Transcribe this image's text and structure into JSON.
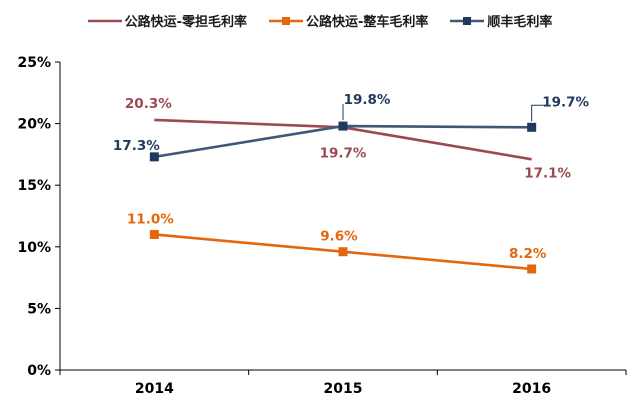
{
  "chart_data": {
    "type": "line",
    "title": "",
    "xlabel": "",
    "ylabel": "",
    "categories": [
      "2014",
      "2015",
      "2016"
    ],
    "series": [
      {
        "name": "公路快运-零担毛利率",
        "values": [
          20.3,
          19.7,
          17.1
        ],
        "labels": [
          "20.3%",
          "19.7%",
          "17.1%"
        ],
        "color": "#9B4A51",
        "label_color": "#9B4A51",
        "marker": "none",
        "label_offsets": [
          [
            -6,
            -16
          ],
          [
            0,
            26
          ],
          [
            16,
            14
          ]
        ],
        "leader_lines": [
          null,
          null,
          null
        ]
      },
      {
        "name": "公路快运-整车毛利率",
        "values": [
          11.0,
          9.6,
          8.2
        ],
        "labels": [
          "11.0%",
          "9.6%",
          "8.2%"
        ],
        "color": "#E4670E",
        "label_color": "#E4670E",
        "marker": "square",
        "marker_color": "#E4670E",
        "label_offsets": [
          [
            -4,
            -15
          ],
          [
            -4,
            -15
          ],
          [
            -4,
            -15
          ]
        ],
        "leader_lines": [
          null,
          null,
          null
        ]
      },
      {
        "name": "顺丰毛利率",
        "values": [
          17.3,
          19.8,
          19.7
        ],
        "labels": [
          "17.3%",
          "19.8%",
          "19.7%"
        ],
        "color": "#3F5876",
        "label_color": "#1F3A5C",
        "marker": "square",
        "marker_color": "#1F3A5C",
        "label_offsets": [
          [
            -18,
            -11
          ],
          [
            24,
            -26
          ],
          [
            34,
            -25
          ]
        ],
        "leader_lines": [
          null,
          [
            [
              0,
              -6
            ],
            [
              0,
              -22
            ]
          ],
          [
            [
              0,
              -6
            ],
            [
              0,
              -22
            ],
            [
              15,
              -22
            ]
          ]
        ]
      }
    ],
    "ylim": [
      0,
      25
    ],
    "yticks": [
      "0%",
      "5%",
      "10%",
      "15%",
      "20%",
      "25%"
    ],
    "ytick_values": [
      0,
      5,
      10,
      15,
      20,
      25
    ],
    "grid": false,
    "legend_position": "top",
    "axis_color": "#000000"
  }
}
